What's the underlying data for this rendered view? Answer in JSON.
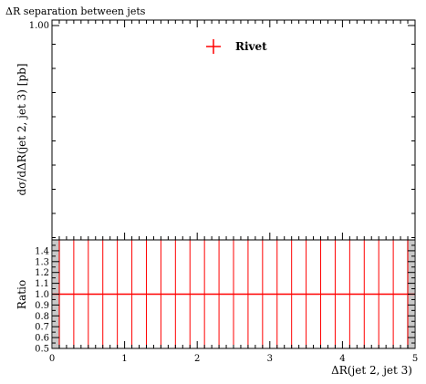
{
  "chart_data": [
    {
      "type": "scatter",
      "panel": "main",
      "title": "ΔR separation between jets",
      "ylabel": "dσ/dΔR(jet 2, jet 3) [pb]",
      "xlim": [
        0,
        5
      ],
      "yticks": [
        "1.00"
      ],
      "legend": {
        "placement": "top-right",
        "entries": [
          {
            "name": "Rivet",
            "color": "#ff0000",
            "marker": "cross"
          }
        ]
      },
      "series": []
    },
    {
      "type": "line",
      "panel": "ratio",
      "ylabel": "Ratio",
      "xlabel": "ΔR(jet 2, jet 3)",
      "xlim": [
        0,
        5
      ],
      "ylim": [
        0.5,
        1.5
      ],
      "xticks": [
        "0",
        "1",
        "2",
        "3",
        "4",
        "5"
      ],
      "yticks": [
        "0.5",
        "0.6",
        "0.7",
        "0.8",
        "0.9",
        "1.0",
        "1.1",
        "1.2",
        "1.3",
        "1.4"
      ],
      "reference_line": 1.0,
      "bin_edges": [
        0.0,
        0.1,
        0.3,
        0.5,
        0.7,
        0.9,
        1.1,
        1.3,
        1.5,
        1.7,
        1.9,
        2.1,
        2.3,
        2.5,
        2.7,
        2.9,
        3.1,
        3.3,
        3.5,
        3.7,
        3.9,
        4.1,
        4.3,
        4.5,
        4.7,
        4.9,
        5.0
      ],
      "series": [
        {
          "name": "Rivet",
          "value": 1.0,
          "color": "#ff0000"
        }
      ]
    }
  ],
  "colors": {
    "data": "#ff0000",
    "axis": "#000000",
    "band": "#c8c8c8"
  }
}
